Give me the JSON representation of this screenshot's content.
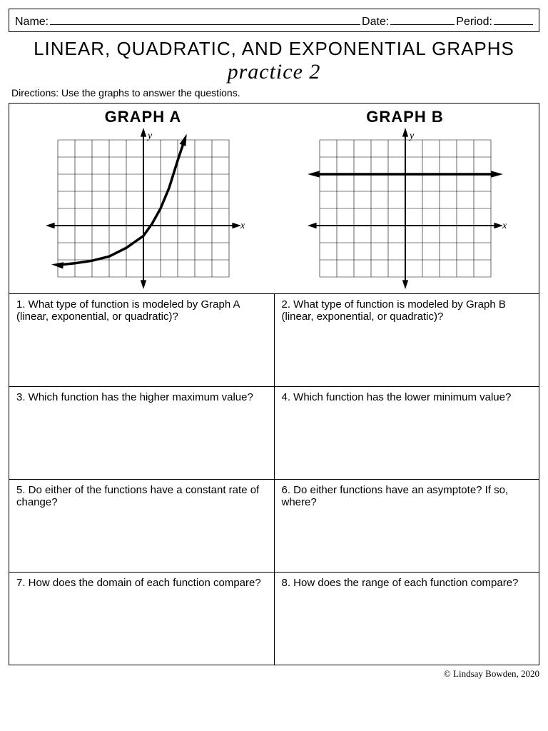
{
  "header": {
    "name_label": "Name:",
    "date_label": "Date:",
    "period_label": "Period:"
  },
  "title": {
    "main": "LINEAR, QUADRATIC, AND EXPONENTIAL GRAPHS",
    "sub": "practice 2"
  },
  "directions": "Directions: Use the graphs to answer the questions.",
  "graphs": {
    "a": {
      "label": "GRAPH A",
      "grid": {
        "cols": 10,
        "rows": 8,
        "cell": 24,
        "axis_x_row": 5,
        "axis_y_col": 5
      },
      "y_label": "y",
      "x_label": "x",
      "curve_type": "exponential",
      "curve_points": [
        [
          -5,
          -2.3
        ],
        [
          -4,
          -2.2
        ],
        [
          -3,
          -2.05
        ],
        [
          -2,
          -1.8
        ],
        [
          -1,
          -1.3
        ],
        [
          0,
          -0.6
        ],
        [
          0.5,
          0.1
        ],
        [
          1,
          1.0
        ],
        [
          1.5,
          2.2
        ],
        [
          2,
          3.8
        ],
        [
          2.4,
          5.0
        ]
      ],
      "asymptote_y": -2.5,
      "stroke": "#000000",
      "stroke_width": 3.5
    },
    "b": {
      "label": "GRAPH B",
      "grid": {
        "cols": 10,
        "rows": 8,
        "cell": 24,
        "axis_x_row": 5,
        "axis_y_col": 5
      },
      "y_label": "y",
      "x_label": "x",
      "curve_type": "constant_linear",
      "line_y": 3.0,
      "stroke": "#000000",
      "stroke_width": 3.5
    }
  },
  "questions": {
    "q1": "1. What type of function is modeled by Graph A (linear, exponential, or quadratic)?",
    "q2": "2. What type of function is modeled by Graph B (linear, exponential, or quadratic)?",
    "q3": "3. Which function has the higher maximum value?",
    "q4": "4. Which function has the lower minimum value?",
    "q5": "5. Do either of the functions have a constant rate of change?",
    "q6": "6. Do either functions have an asymptote? If so, where?",
    "q7": "7. How does the domain of each function compare?",
    "q8": "8. How does the range of each function compare?"
  },
  "footer": "© Lindsay Bowden, 2020"
}
